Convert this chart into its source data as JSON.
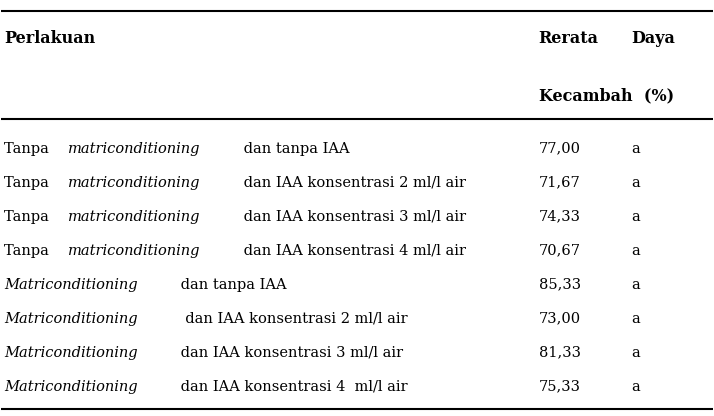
{
  "header_col1": "Perlakuan",
  "header_col2_line1_part1": "Rerata",
  "header_col2_line1_part2": "    Daya",
  "header_col2_line2": "Kecambah  (%)",
  "rows": [
    {
      "plain": "Tanpa ",
      "italic": "matriconditioning",
      "rest": " dan tanpa IAA",
      "value": "77,00",
      "letter": "a"
    },
    {
      "plain": "Tanpa ",
      "italic": "matriconditioning",
      "rest": " dan IAA konsentrasi 2 ml/l air",
      "value": "71,67",
      "letter": "a"
    },
    {
      "plain": "Tanpa ",
      "italic": "matriconditioning",
      "rest": " dan IAA konsentrasi 3 ml/l air",
      "value": "74,33",
      "letter": "a"
    },
    {
      "plain": "Tanpa ",
      "italic": "matriconditioning",
      "rest": " dan IAA konsentrasi 4 ml/l air",
      "value": "70,67",
      "letter": "a"
    },
    {
      "plain": "",
      "italic": "Matriconditioning",
      "rest": " dan tanpa IAA",
      "value": "85,33",
      "letter": "a"
    },
    {
      "plain": "",
      "italic": "Matriconditioning",
      "rest": "  dan IAA konsentrasi 2 ml/l air",
      "value": "73,00",
      "letter": "a"
    },
    {
      "plain": "",
      "italic": "Matriconditioning",
      "rest": " dan IAA konsentrasi 3 ml/l air",
      "value": "81,33",
      "letter": "a"
    },
    {
      "plain": "",
      "italic": "Matriconditioning",
      "rest": " dan IAA konsentrasi 4  ml/l air",
      "value": "75,33",
      "letter": "a"
    }
  ],
  "font_size": 10.5,
  "header_font_size": 11.5,
  "bg_color": "#ffffff",
  "text_color": "#000000",
  "line_color": "#000000"
}
